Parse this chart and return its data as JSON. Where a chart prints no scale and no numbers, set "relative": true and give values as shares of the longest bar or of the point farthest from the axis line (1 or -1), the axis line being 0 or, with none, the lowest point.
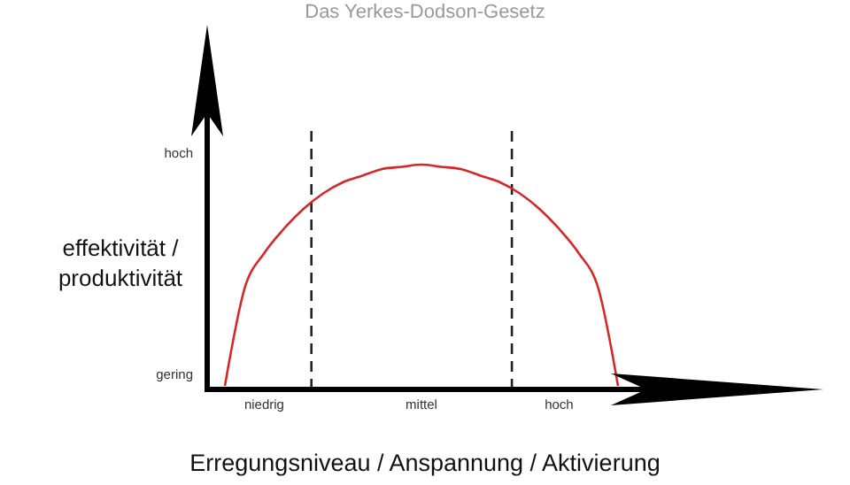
{
  "chart_data": {
    "type": "line",
    "title": "Das Yerkes-Dodson-Gesetz",
    "xlabel": "Erregungsniveau / Anspannung / Aktivierung",
    "ylabel": "effektivität /\nproduktivität",
    "relative": true,
    "categories": [
      null,
      null,
      "niedrig",
      null,
      null,
      null,
      null,
      null,
      null,
      null,
      "mittel",
      null,
      null,
      null,
      null,
      null,
      null,
      "hoch",
      null,
      null,
      null
    ],
    "values": [
      0,
      0.44,
      0.6,
      0.71,
      0.8,
      0.87,
      0.92,
      0.95,
      0.98,
      0.99,
      1,
      0.99,
      0.98,
      0.95,
      0.92,
      0.87,
      0.8,
      0.71,
      0.6,
      0.44,
      0
    ],
    "color": "#d62728",
    "annotations": [
      "hoch",
      "gering"
    ]
  }
}
